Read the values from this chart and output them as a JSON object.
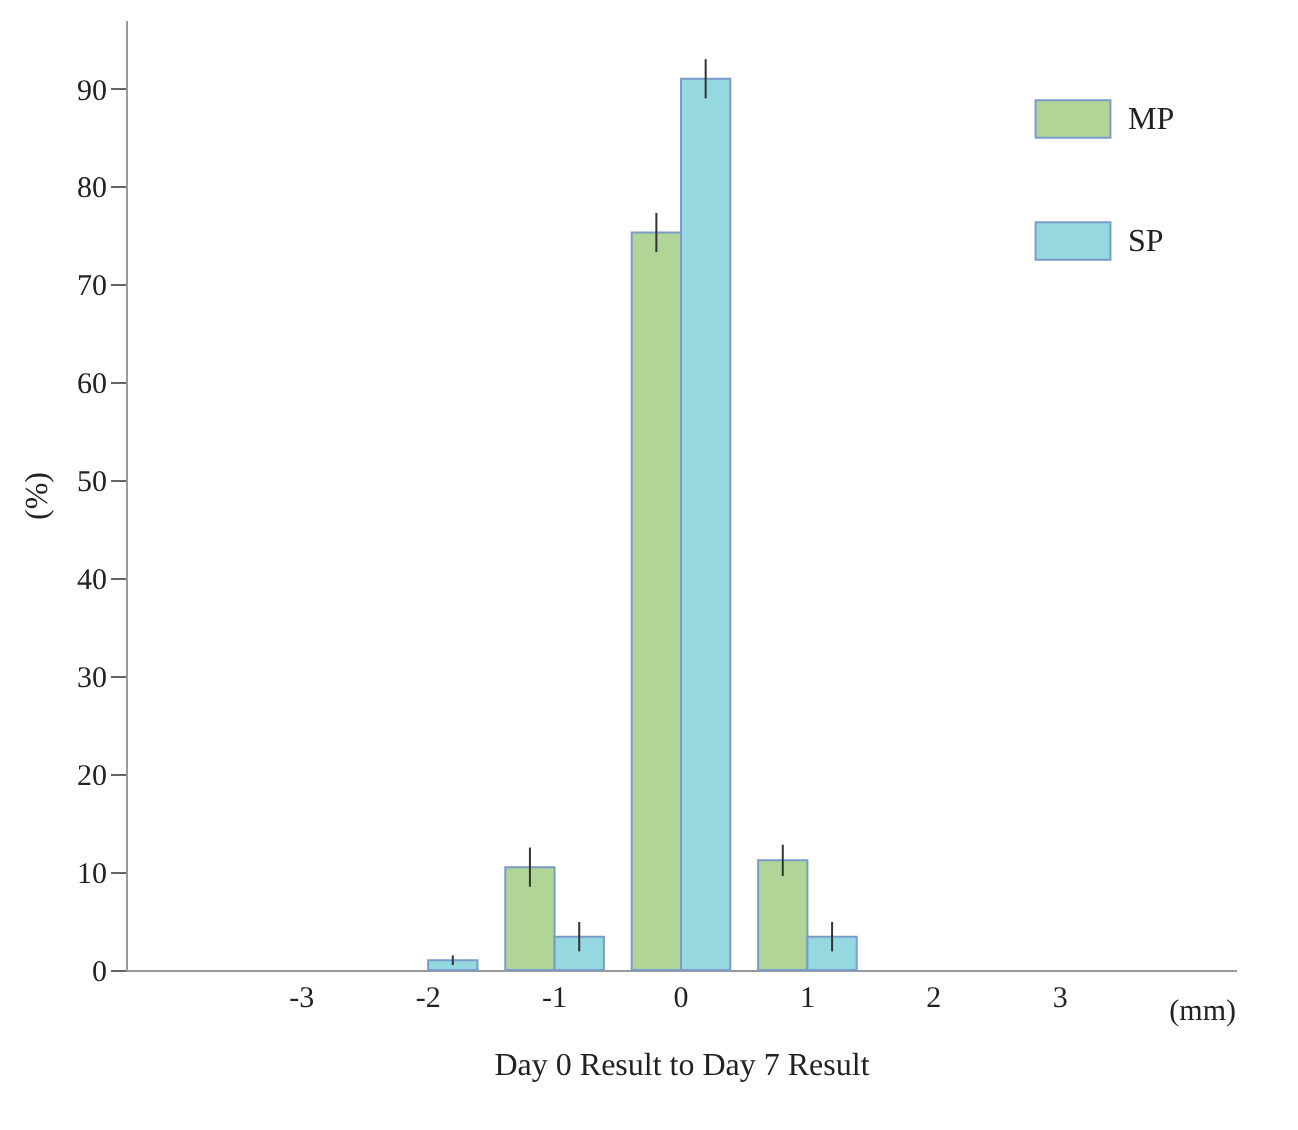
{
  "chart_data": {
    "type": "bar",
    "xlabel": "Day 0 Result to Day 7 Result",
    "ylabel": "(%)",
    "categories": [
      "-3",
      "-2",
      "-1",
      "0",
      "1",
      "2",
      "3"
    ],
    "series": [
      {
        "name": "MP",
        "color": "#b0d597",
        "values": [
          null,
          null,
          10.5,
          75.3,
          11.2,
          null,
          null
        ],
        "errors": [
          null,
          null,
          2,
          2,
          1.6,
          null,
          null
        ]
      },
      {
        "name": "SP",
        "color": "#95d8e0",
        "values": [
          null,
          1,
          3.4,
          91,
          3.4,
          null,
          null
        ],
        "errors": [
          null,
          0.5,
          1.5,
          2,
          1.5,
          null,
          null
        ]
      }
    ],
    "ylim": [
      0,
      97
    ],
    "yticks": [
      0,
      10,
      20,
      30,
      40,
      50,
      60,
      70,
      80,
      90
    ],
    "annotations": [
      "(mm)"
    ],
    "legend": "top right",
    "grid": false
  }
}
